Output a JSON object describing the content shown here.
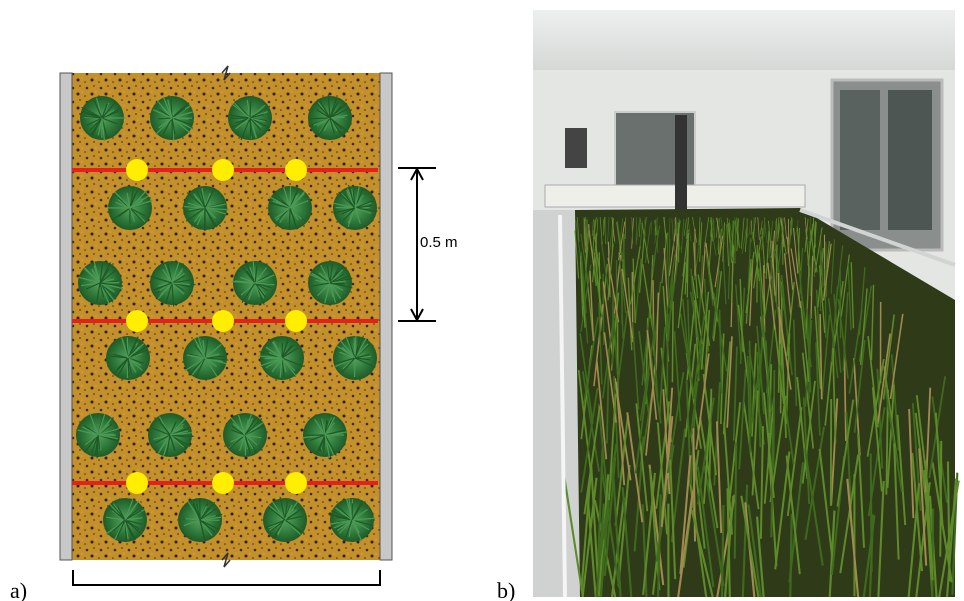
{
  "panels": [
    {
      "label": "a)",
      "dimension_label": "0.5 m"
    },
    {
      "label": "b)"
    }
  ]
}
